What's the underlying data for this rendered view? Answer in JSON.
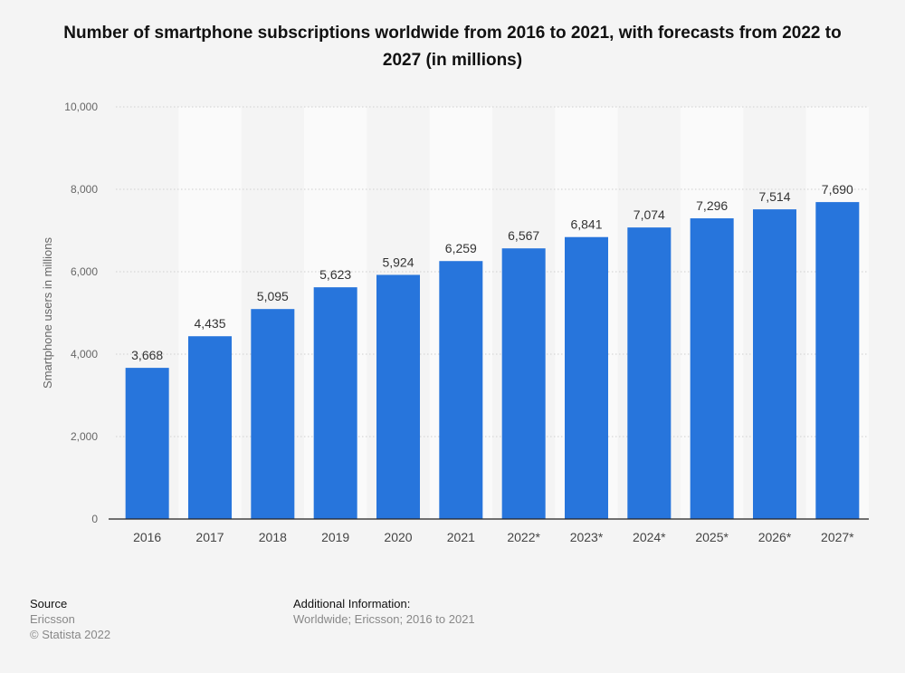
{
  "chart_data": {
    "type": "bar",
    "title": "Number of smartphone subscriptions worldwide from 2016 to 2021, with forecasts from 2022 to 2027 (in millions)",
    "ylabel": "Smartphone users in millions",
    "xlabel": "",
    "categories": [
      "2016",
      "2017",
      "2018",
      "2019",
      "2020",
      "2021",
      "2022*",
      "2023*",
      "2024*",
      "2025*",
      "2026*",
      "2027*"
    ],
    "values": [
      3668,
      4435,
      5095,
      5623,
      5924,
      6259,
      6567,
      6841,
      7074,
      7296,
      7514,
      7690
    ],
    "data_labels": [
      "3,668",
      "4,435",
      "5,095",
      "5,623",
      "5,924",
      "6,259",
      "6,567",
      "6,841",
      "7,074",
      "7,296",
      "7,514",
      "7,690"
    ],
    "ylim": [
      0,
      10000
    ],
    "yticks": [
      0,
      2000,
      4000,
      6000,
      8000,
      10000
    ],
    "ytick_labels": [
      "0",
      "2,000",
      "4,000",
      "6,000",
      "8,000",
      "10,000"
    ],
    "grid": true,
    "bar_color": "#2775dc"
  },
  "footer": {
    "source_heading": "Source",
    "source": "Ericsson",
    "copyright": "© Statista 2022",
    "additional_heading": "Additional Information:",
    "additional": "Worldwide; Ericsson; 2016 to 2021"
  }
}
